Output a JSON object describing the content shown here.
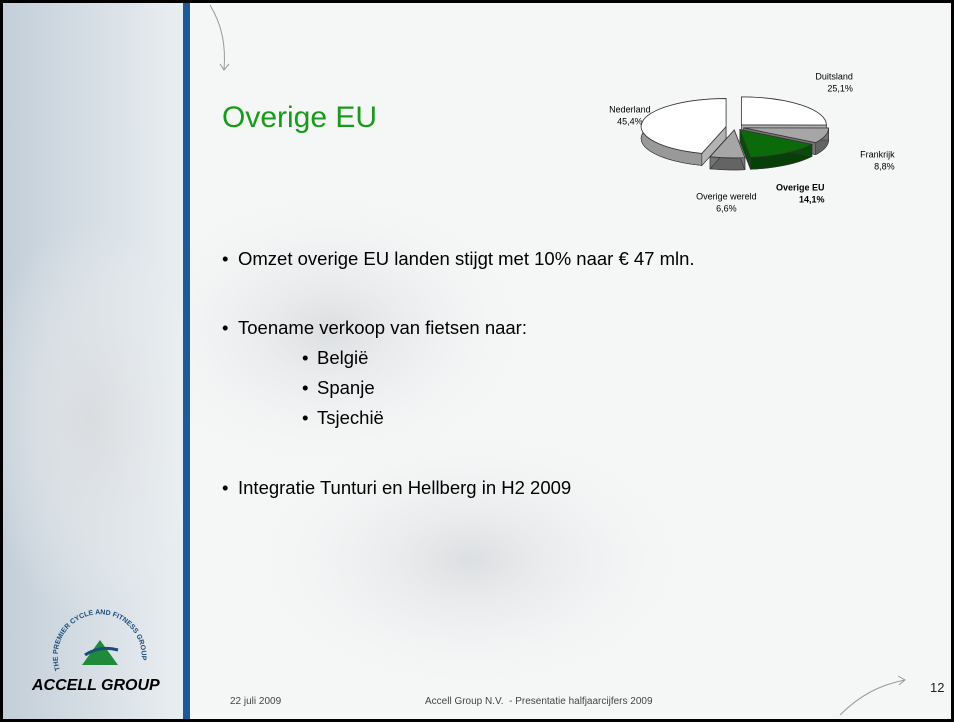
{
  "slide": {
    "title": "Overige EU",
    "bullets": [
      {
        "text": "Omzet overige EU landen stijgt met 10% naar € 47 mln."
      },
      {
        "text": "Toename verkoop van fietsen naar:",
        "sub": [
          "België",
          "Spanje",
          "Tsjechië"
        ]
      },
      {
        "text": "Integratie Tunturi en Hellberg in H2 2009"
      }
    ],
    "footer": {
      "date": "22 juli 2009",
      "center": "Accell Group N.V.  - Presentatie halfjaarcijfers 2009",
      "page": "12"
    },
    "logo": {
      "name": "ACCELL GROUP",
      "tagline": "THE PREMIER CYCLE AND FITNESS GROUP"
    }
  },
  "chart_data": {
    "type": "pie",
    "categories": [
      "Duitsland",
      "Frankrijk",
      "Overige EU",
      "Overige wereld",
      "Nederland"
    ],
    "values": [
      25.1,
      8.8,
      14.1,
      6.6,
      45.4
    ],
    "value_labels": [
      "25,1%",
      "8,8%",
      "14,1%",
      "6,6%",
      "45,4%"
    ],
    "colors": [
      "#ffffff",
      "#a6a6a6",
      "#0b6b0b",
      "#a6a6a6",
      "#ffffff"
    ],
    "highlight": "Overige EU"
  }
}
